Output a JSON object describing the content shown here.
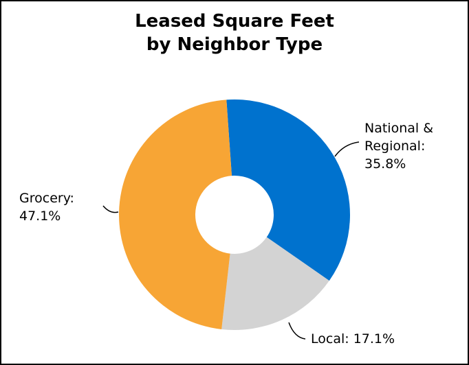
{
  "chart_data": {
    "type": "donut",
    "title": "Leased Square Feet",
    "subtitle": "by Neighbor Type",
    "categories": [
      "National & Regional:",
      "Local:",
      "Grocery:"
    ],
    "values": [
      35.8,
      17.1,
      47.1
    ],
    "value_labels": [
      "35.8%",
      "17.1%",
      "47.1%"
    ],
    "colors": [
      "#0072ce",
      "#d3d3d3",
      "#f7a535"
    ]
  }
}
